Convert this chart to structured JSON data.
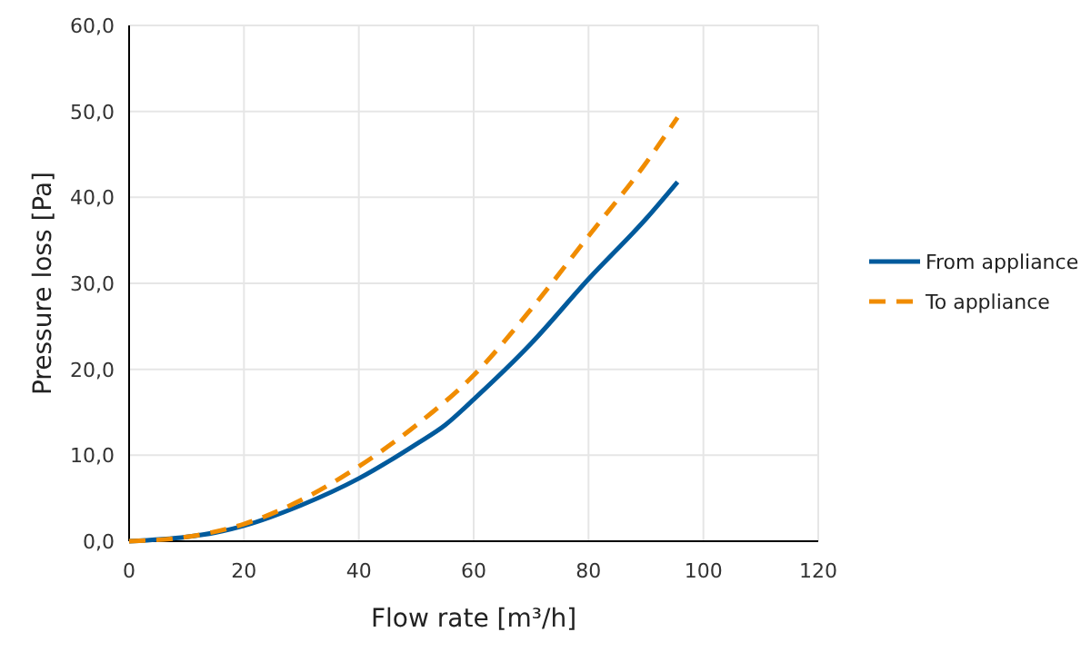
{
  "chart_data": {
    "type": "line",
    "xlabel": "Flow rate [m³/h]",
    "ylabel": "Pressure loss [Pa]",
    "xlim": [
      0,
      120
    ],
    "xticks": [
      0,
      20,
      40,
      60,
      80,
      100,
      120
    ],
    "ylim": [
      0,
      60
    ],
    "yticks": [
      {
        "value": 0,
        "label": "0,0"
      },
      {
        "value": 10,
        "label": "10,0"
      },
      {
        "value": 20,
        "label": "20,0"
      },
      {
        "value": 30,
        "label": "30,0"
      },
      {
        "value": 40,
        "label": "40,0"
      },
      {
        "value": 50,
        "label": "50,0"
      },
      {
        "value": 60,
        "label": "60,0"
      }
    ],
    "grid": true,
    "legend": "right",
    "series": [
      {
        "name": "From appliance",
        "color": "#005a9c",
        "line_style": "solid",
        "x": [
          0,
          10,
          15,
          20,
          30,
          40,
          50,
          55,
          60,
          70,
          80,
          90,
          95.5
        ],
        "values": [
          0,
          0.5,
          1.0,
          1.8,
          4.2,
          7.3,
          11.3,
          13.5,
          16.5,
          23,
          30.5,
          37.5,
          41.8
        ]
      },
      {
        "name": "To appliance",
        "color": "#f08c00",
        "line_style": "dashed",
        "x": [
          0,
          10,
          20,
          30,
          40,
          50,
          60,
          70,
          80,
          90,
          95.5
        ],
        "values": [
          0,
          0.5,
          2.0,
          4.8,
          8.7,
          13.5,
          19.3,
          27,
          35.5,
          44,
          49.3
        ]
      }
    ]
  }
}
